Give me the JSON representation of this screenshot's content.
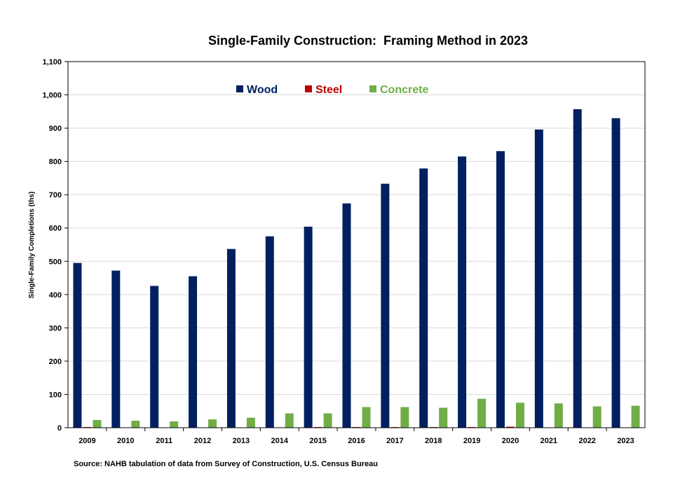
{
  "chart_data": {
    "type": "bar",
    "title": "Single-Family Construction:  Framing Method in 2023",
    "ylabel": "Single-Family Completions (ths)",
    "xlabel": "",
    "ylim": [
      0,
      1100
    ],
    "ytick_step": 100,
    "grid": true,
    "legend_position": "top-center",
    "categories": [
      "2009",
      "2010",
      "2011",
      "2012",
      "2013",
      "2014",
      "2015",
      "2016",
      "2017",
      "2018",
      "2019",
      "2020",
      "2021",
      "2022",
      "2023"
    ],
    "series": [
      {
        "name": "Wood",
        "color": "#002060",
        "values": [
          495,
          472,
          426,
          455,
          537,
          575,
          604,
          674,
          733,
          779,
          815,
          831,
          896,
          957,
          930
        ]
      },
      {
        "name": "Steel",
        "color": "#c00000",
        "values": [
          2,
          1,
          1,
          1,
          1,
          1,
          2,
          2,
          2,
          2,
          2,
          3,
          1,
          1,
          1
        ]
      },
      {
        "name": "Concrete",
        "color": "#70ad47",
        "values": [
          23,
          21,
          19,
          25,
          30,
          43,
          43,
          62,
          62,
          60,
          87,
          75,
          73,
          64,
          66
        ]
      }
    ]
  },
  "source": "Source: NAHB tabulation of data from Survey of Construction, U.S. Census Bureau"
}
